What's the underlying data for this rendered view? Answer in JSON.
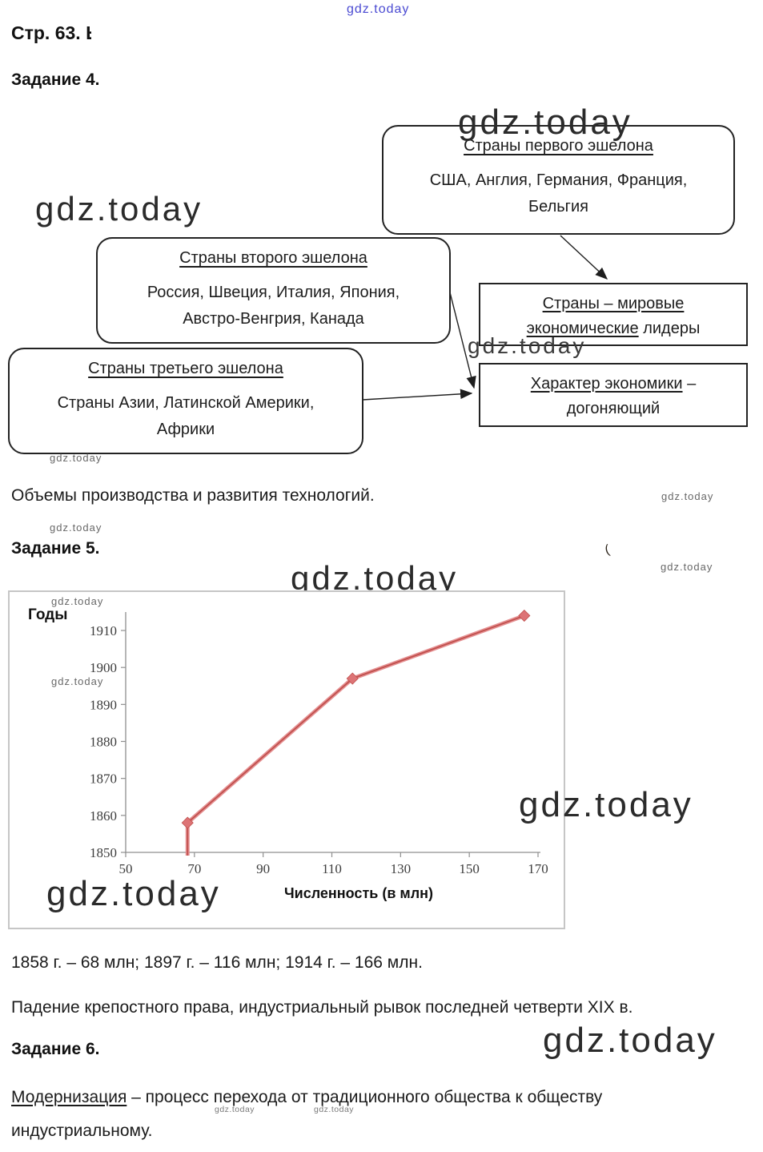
{
  "brand": {
    "text": "gdz.today"
  },
  "page": {
    "label": "Стр. 63.",
    "fragment": "Ь"
  },
  "task4": {
    "heading": "Задание 4.",
    "echelon_boxes": [
      {
        "title": "Страны первого эшелона",
        "line1": "США, Англия, Германия, Франция,",
        "line2": "Бельгия"
      },
      {
        "title": "Страны второго эшелона",
        "line1": "Россия, Швеция, Италия, Япония,",
        "line2": "Австро-Венгрия, Канада"
      },
      {
        "title": "Страны третьего эшелона",
        "line1": "Страны Азии, Латинской Америки,",
        "line2": "Африки"
      }
    ],
    "leaders_box": {
      "line1_underlined": "Страны – мировые",
      "line1_rest": "",
      "line2_underlined": "экономические",
      "line2_rest": " лидеры"
    },
    "economy_box": {
      "line1_underlined": "Характер экономики",
      "line1_rest": " –",
      "line2_underlined": "",
      "line2_rest": "догоняющий"
    },
    "answer": "Объемы производства и развития технологий."
  },
  "task5": {
    "heading": "Задание 5.",
    "paren_mark": "(",
    "stats": "1858 г. – 68 млн; 1897 г. – 116 млн; 1914 г. – 166 млн.",
    "reason": "Падение крепостного права, индустриальный рывок последней четверти XIX в."
  },
  "task6": {
    "heading": "Задание 6.",
    "definition_term": "Модернизация",
    "definition_rest": " – процесс перехода от традиционного общества к обществу",
    "definition_line2": "индустриальному."
  },
  "chart_data": {
    "type": "line",
    "title": "",
    "ylabel": "Годы",
    "xlabel": "Численность (в млн)",
    "x": [
      68,
      116,
      166
    ],
    "y": [
      1858,
      1897,
      1914
    ],
    "xlim": [
      50,
      170
    ],
    "ylim": [
      1850,
      1910
    ],
    "xticks": [
      50,
      70,
      90,
      110,
      130,
      150,
      170
    ],
    "yticks": [
      1850,
      1860,
      1870,
      1880,
      1890,
      1900,
      1910
    ],
    "grid": false,
    "legend": "none",
    "marker": "diamond",
    "line_color": "#dd7476",
    "line_color_light": "#e59092",
    "line_color_dark": "#c0504d",
    "axis_color": "#8f8f8f",
    "tick_label_color": "#3d3d3d"
  }
}
